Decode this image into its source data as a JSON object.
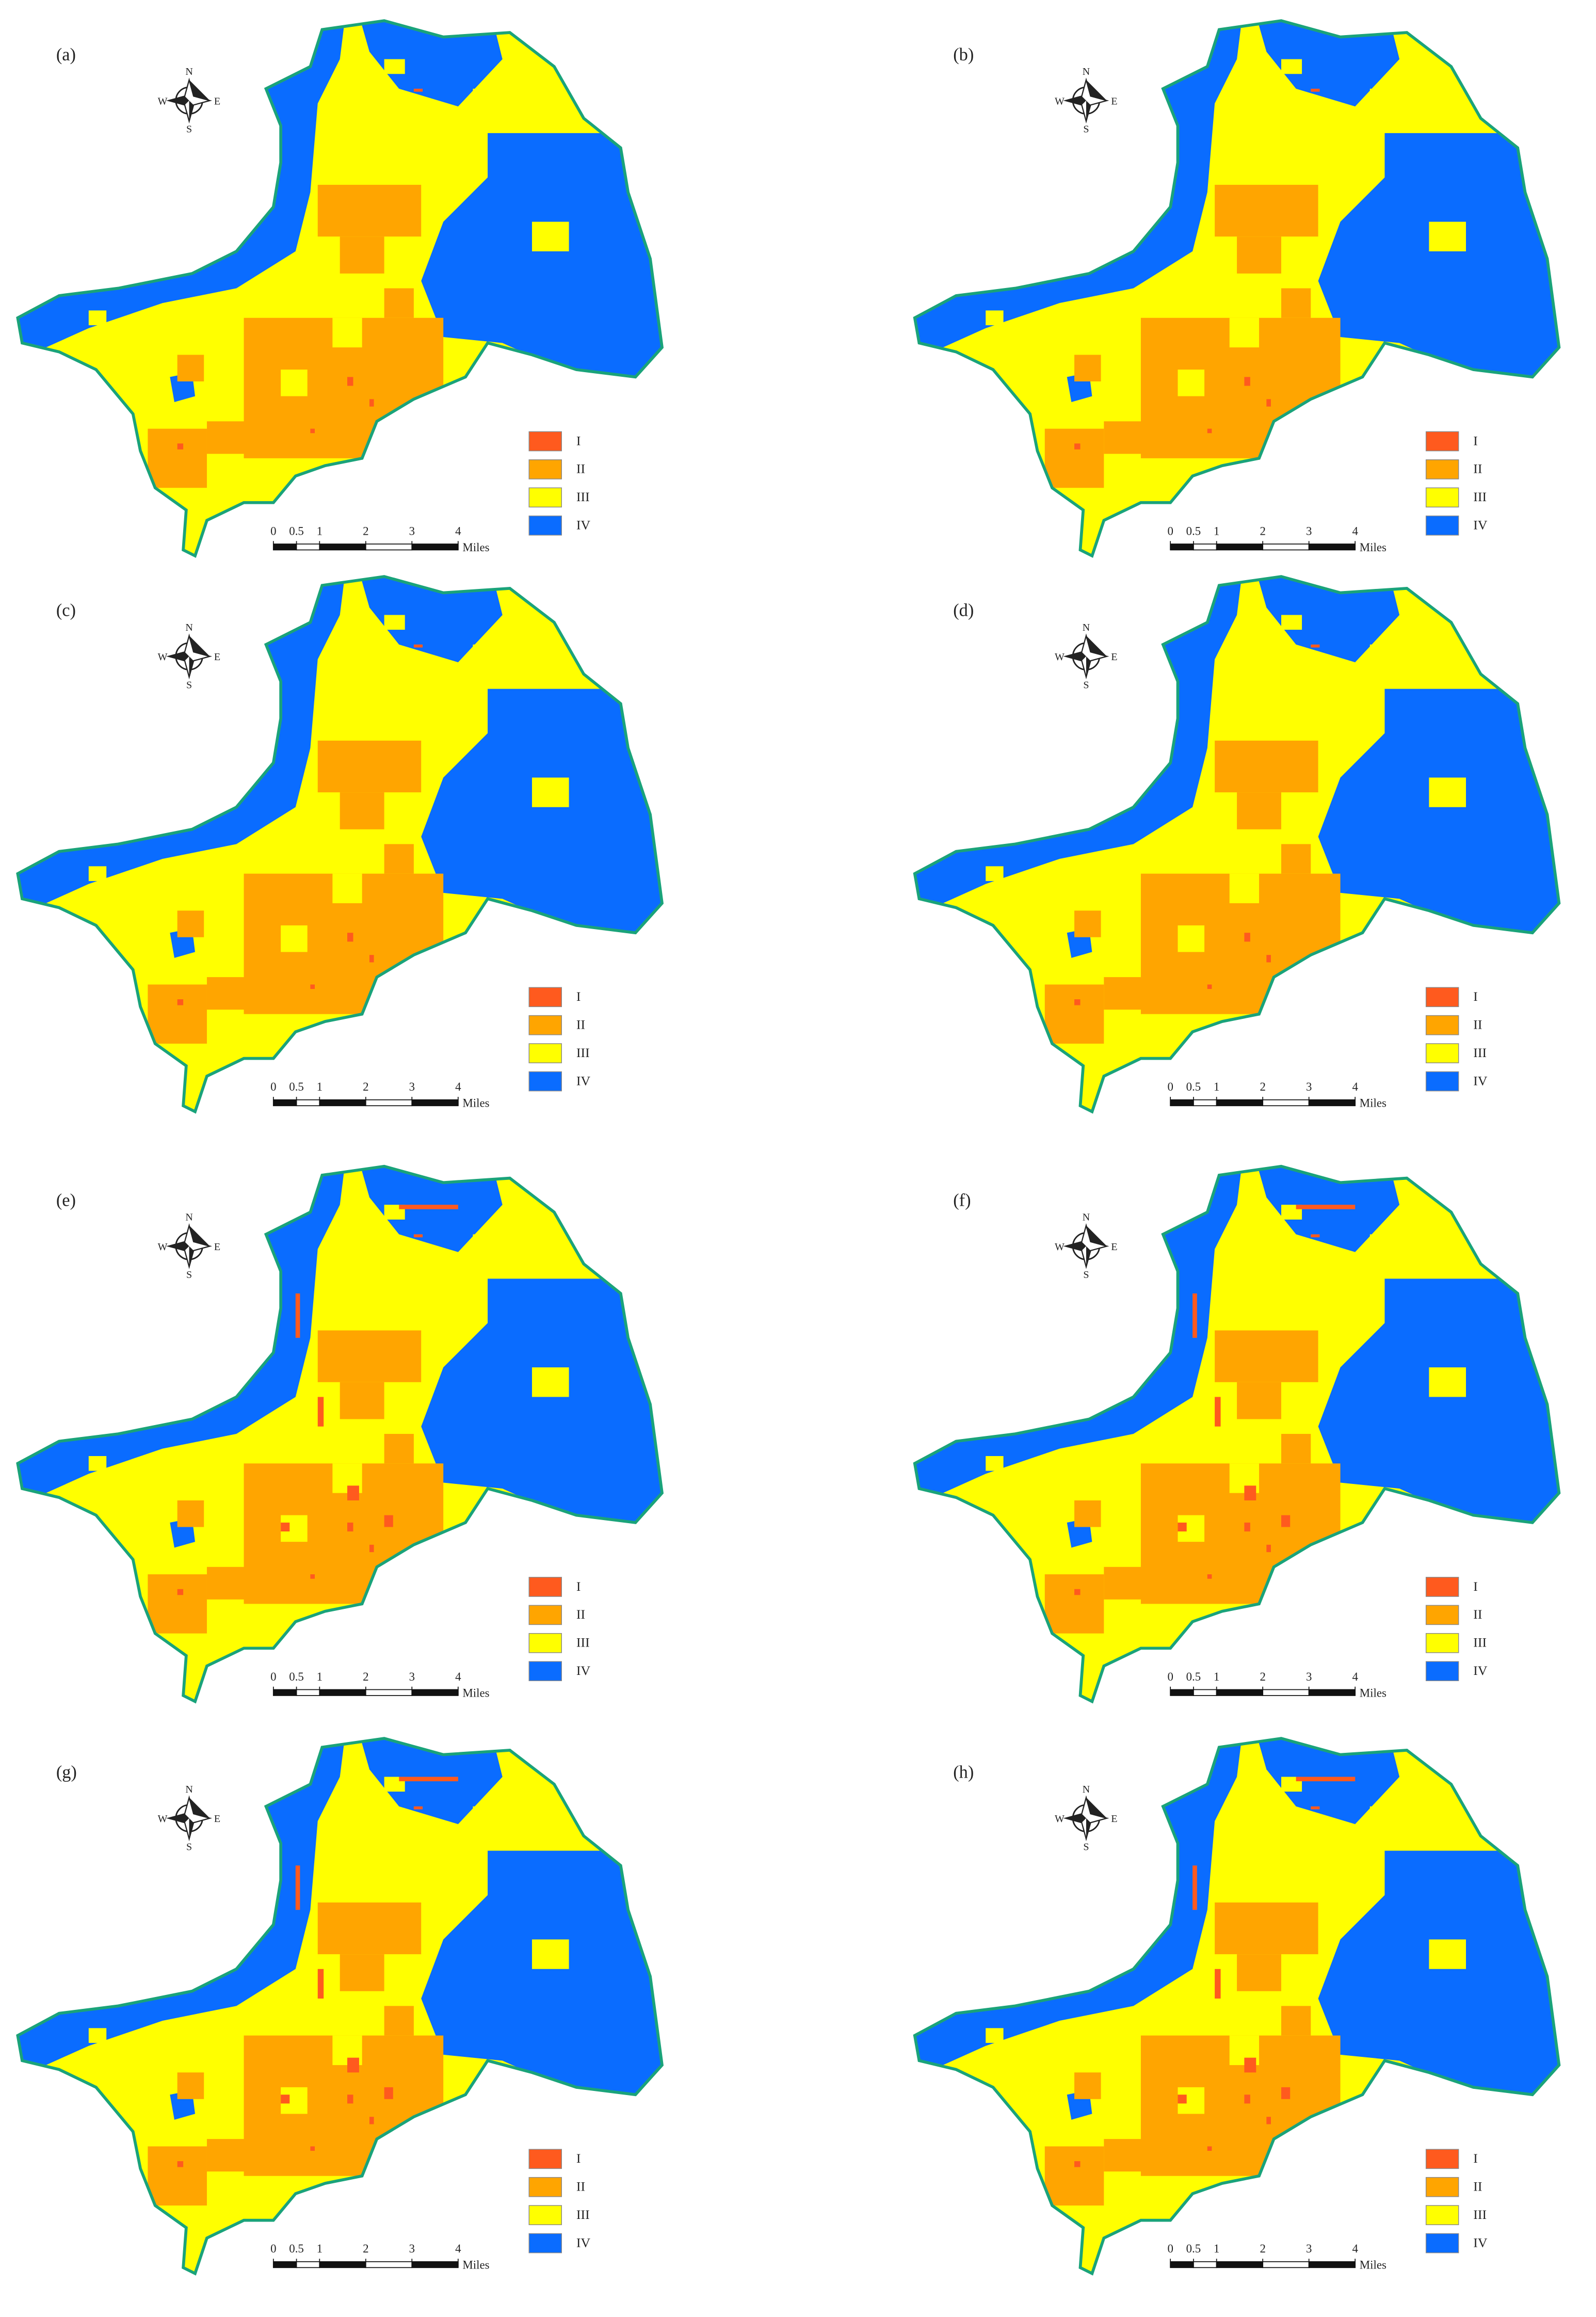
{
  "panels": [
    {
      "label": "(a)"
    },
    {
      "label": "(b)"
    },
    {
      "label": "(c)"
    },
    {
      "label": "(d)"
    },
    {
      "label": "(e)"
    },
    {
      "label": "(f)"
    },
    {
      "label": "(g)"
    },
    {
      "label": "(h)"
    }
  ],
  "compass": {
    "north": "N",
    "south": "S",
    "east": "E",
    "west": "W"
  },
  "legend": [
    {
      "label": "I",
      "color": "#ff5a1e"
    },
    {
      "label": "II",
      "color": "#ffa500"
    },
    {
      "label": "III",
      "color": "#ffff00"
    },
    {
      "label": "IV",
      "color": "#0a6cff"
    }
  ],
  "boundary_color": "#1aa37a",
  "scale_bar": {
    "ticks": [
      0,
      0.5,
      1,
      2,
      3,
      4
    ],
    "unit": "Miles"
  }
}
